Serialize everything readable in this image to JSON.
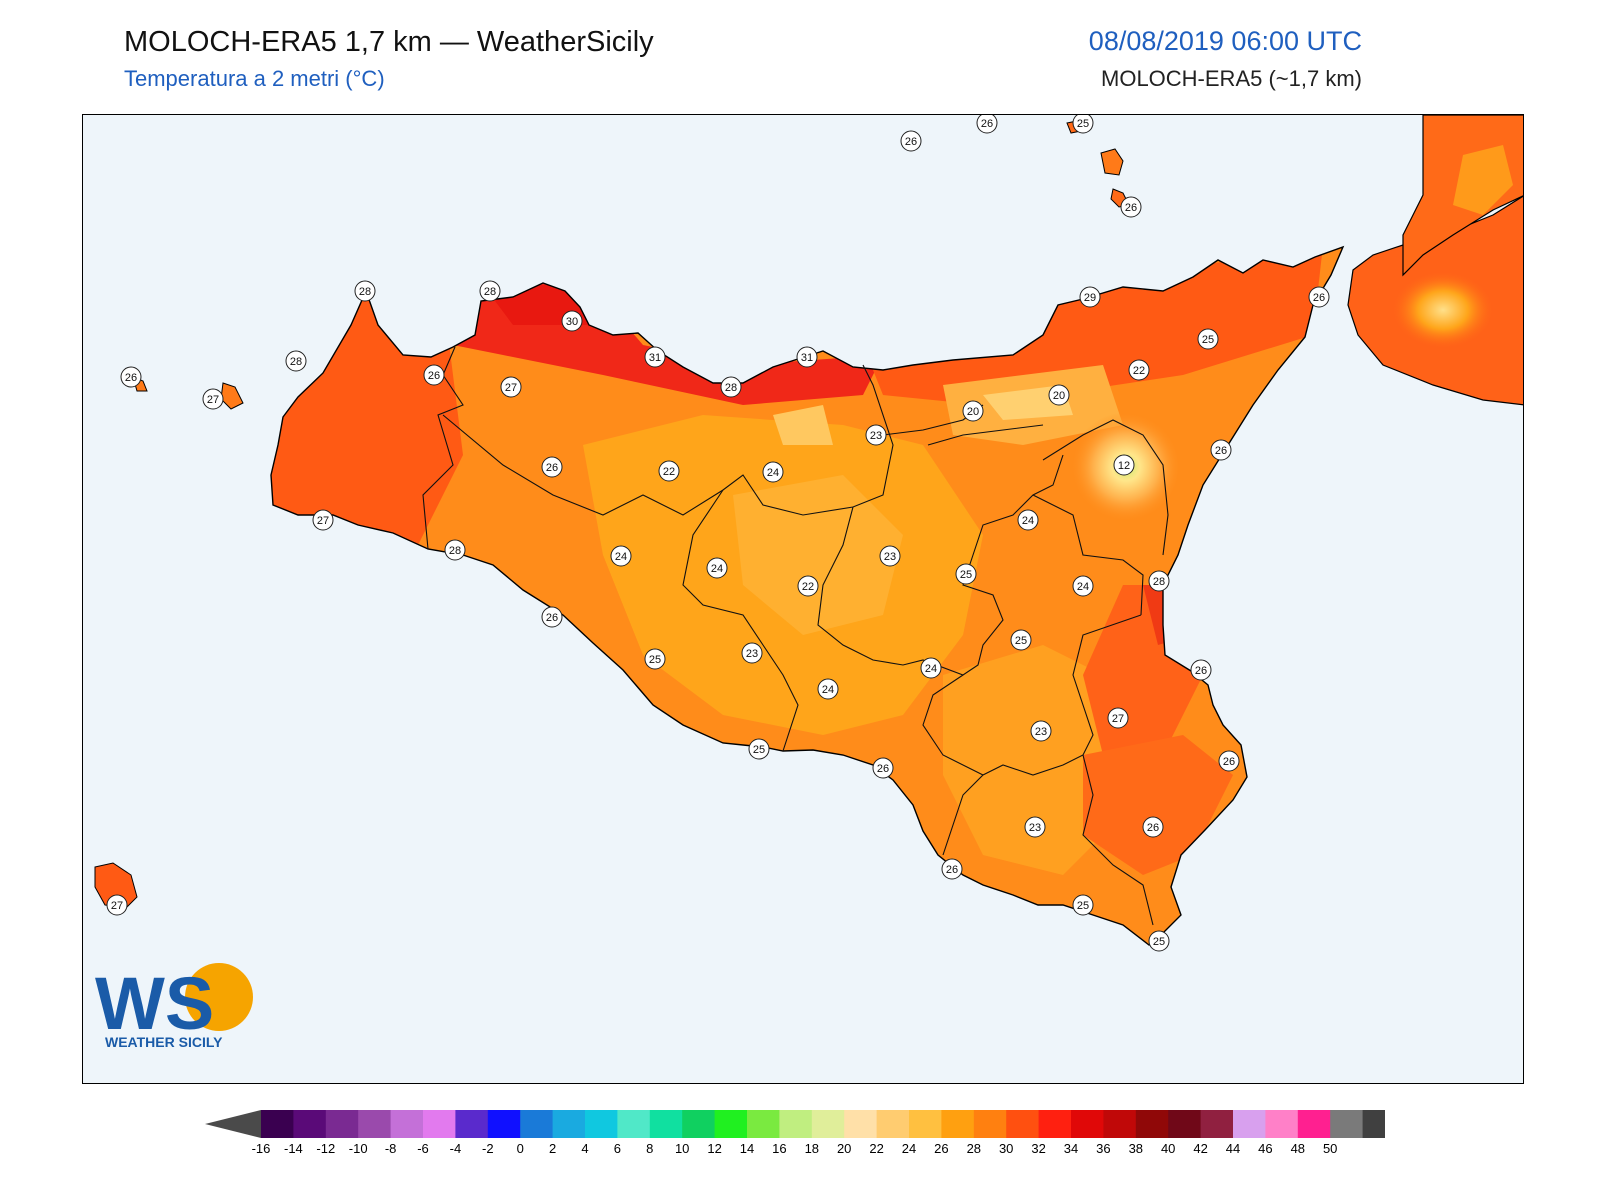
{
  "header": {
    "title": "MOLOCH-ERA5 1,7 km — WeatherSicily",
    "subtitle": "Temperatura a 2 metri (°C)",
    "datetime": "08/08/2019 06:00 UTC",
    "model": "MOLOCH-ERA5 (~1,7 km)"
  },
  "logo": {
    "letters": "WS",
    "text": "WEATHER SICILY"
  },
  "colors": {
    "sea": "#eef5fa",
    "land_base": "#ff8c1a",
    "warm": "#ff5a14",
    "hot": "#f02010",
    "mild": "#ffa51a",
    "cool": "#ffc04a",
    "cold": "#ffe08a"
  },
  "colorbar": {
    "ticks": [
      "-16",
      "-14",
      "-12",
      "-10",
      "-8",
      "-6",
      "-4",
      "-2",
      "0",
      "2",
      "4",
      "6",
      "8",
      "10",
      "12",
      "14",
      "16",
      "18",
      "20",
      "22",
      "24",
      "26",
      "28",
      "30",
      "32",
      "34",
      "36",
      "38",
      "40",
      "42",
      "44",
      "46",
      "48",
      "50"
    ],
    "colors": [
      "#3a0050",
      "#5a0a78",
      "#7a2a92",
      "#9a4aac",
      "#c470d8",
      "#e27aee",
      "#5a2acc",
      "#1010ff",
      "#1a7ad8",
      "#1aaae0",
      "#10c8e0",
      "#50e8c8",
      "#10e0a0",
      "#10d060",
      "#20f020",
      "#7aea40",
      "#c0ee80",
      "#e0ee9a",
      "#ffe0a8",
      "#ffcc70",
      "#ffc040",
      "#ffa010",
      "#ff8010",
      "#ff5010",
      "#ff2010",
      "#e00808",
      "#c00808",
      "#900808",
      "#700818",
      "#902040",
      "#d8a0ee",
      "#ff80c8",
      "#ff2090",
      "#7a7a7a",
      "#404040"
    ]
  },
  "values": [
    {
      "v": "26"
    },
    {
      "v": "26"
    },
    {
      "v": "25"
    },
    {
      "v": "26"
    },
    {
      "v": "28"
    },
    {
      "v": "28"
    },
    {
      "v": "30"
    },
    {
      "v": "31"
    },
    {
      "v": "31"
    },
    {
      "v": "29"
    },
    {
      "v": "26"
    },
    {
      "v": "26"
    },
    {
      "v": "27"
    },
    {
      "v": "28"
    },
    {
      "v": "26"
    },
    {
      "v": "27"
    },
    {
      "v": "28"
    },
    {
      "v": "25"
    },
    {
      "v": "22"
    },
    {
      "v": "20"
    },
    {
      "v": "20"
    },
    {
      "v": "23"
    },
    {
      "v": "26"
    },
    {
      "v": "26"
    },
    {
      "v": "22"
    },
    {
      "v": "24"
    },
    {
      "v": "12"
    },
    {
      "v": "27"
    },
    {
      "v": "24"
    },
    {
      "v": "23"
    },
    {
      "v": "28"
    },
    {
      "v": "24"
    },
    {
      "v": "24"
    },
    {
      "v": "22"
    },
    {
      "v": "25"
    },
    {
      "v": "24"
    },
    {
      "v": "28"
    },
    {
      "v": "26"
    },
    {
      "v": "25"
    },
    {
      "v": "23"
    },
    {
      "v": "24"
    },
    {
      "v": "24"
    },
    {
      "v": "26"
    },
    {
      "v": "27"
    },
    {
      "v": "23"
    },
    {
      "v": "25"
    },
    {
      "v": "25"
    },
    {
      "v": "26"
    },
    {
      "v": "26"
    },
    {
      "v": "26"
    },
    {
      "v": "23"
    },
    {
      "v": "26"
    },
    {
      "v": "25"
    },
    {
      "v": "25"
    },
    {
      "v": "27"
    }
  ]
}
